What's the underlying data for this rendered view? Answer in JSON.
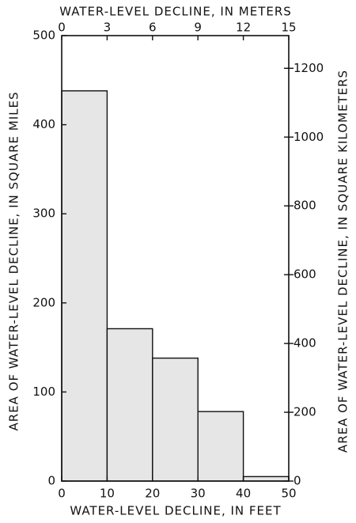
{
  "chart_data": {
    "type": "histogram",
    "xlabel": "WATER-LEVEL DECLINE, IN FEET",
    "x2label": "WATER-LEVEL DECLINE, IN METERS",
    "ylabel": "AREA OF WATER-LEVEL DECLINE, IN SQUARE MILES",
    "y2label": "AREA OF WATER-LEVEL DECLINE, IN SQUARE KILOMETERS",
    "bins": [
      0,
      10,
      20,
      30,
      40,
      50
    ],
    "values": [
      438,
      171,
      138,
      78,
      5
    ],
    "color": "#e6e6e6",
    "xlim": [
      0,
      50
    ],
    "xticks": [
      0,
      10,
      20,
      30,
      40,
      50
    ],
    "x2lim": [
      0,
      15
    ],
    "x2ticks": [
      0,
      3,
      6,
      9,
      12,
      15
    ],
    "ylim": [
      0,
      500
    ],
    "yticks": [
      0,
      100,
      200,
      300,
      400,
      500
    ],
    "y2lim": [
      0,
      1295
    ],
    "y2ticks": [
      0,
      200,
      400,
      600,
      800,
      1000,
      1200
    ]
  }
}
